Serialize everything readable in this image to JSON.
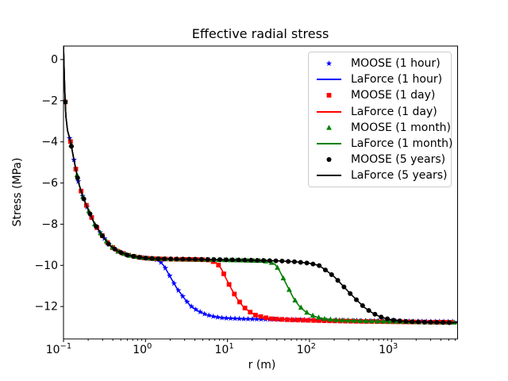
{
  "figure": {
    "title": "Effective radial stress",
    "xlabel": "r (m)",
    "ylabel": "Stress (MPa)",
    "background": "#ffffff"
  },
  "chart_data": {
    "type": "line",
    "title": "Effective radial stress",
    "xlabel": "r (m)",
    "ylabel": "Stress (MPa)",
    "x_scale": "log",
    "y_scale": "linear",
    "xlim": [
      0.1,
      6400
    ],
    "ylim": [
      -13.6,
      0.66
    ],
    "grid": false,
    "legend_position": "upper right",
    "x_ticks": [
      {
        "value": 0.1,
        "mantissa": "10",
        "exp": "−1"
      },
      {
        "value": 1,
        "mantissa": "10",
        "exp": "0"
      },
      {
        "value": 10,
        "mantissa": "10",
        "exp": "1"
      },
      {
        "value": 100,
        "mantissa": "10",
        "exp": "2"
      },
      {
        "value": 1000,
        "mantissa": "10",
        "exp": "3"
      }
    ],
    "y_ticks": [
      {
        "value": 0,
        "label": "0"
      },
      {
        "value": -2,
        "label": "−2"
      },
      {
        "value": -4,
        "label": "−4"
      },
      {
        "value": -6,
        "label": "−6"
      },
      {
        "value": -8,
        "label": "−8"
      },
      {
        "value": -10,
        "label": "−10"
      },
      {
        "value": -12,
        "label": "−12"
      }
    ],
    "common_profile": [
      [
        0.1,
        0.65
      ],
      [
        0.102,
        -0.6
      ],
      [
        0.104,
        -1.7
      ],
      [
        0.107,
        -2.77
      ],
      [
        0.112,
        -3.45
      ],
      [
        0.122,
        -4.0
      ],
      [
        0.136,
        -5.0
      ],
      [
        0.153,
        -6.0
      ],
      [
        0.17,
        -6.6
      ],
      [
        0.2,
        -7.3
      ],
      [
        0.24,
        -8.0
      ],
      [
        0.29,
        -8.5
      ],
      [
        0.36,
        -9.0
      ],
      [
        0.45,
        -9.3
      ],
      [
        0.6,
        -9.5
      ],
      [
        0.8,
        -9.6
      ],
      [
        1.0,
        -9.65
      ],
      [
        1.3,
        -9.68
      ]
    ],
    "curves": {
      "1 hour": [
        [
          1.5,
          -9.8
        ],
        [
          1.7,
          -10.05
        ],
        [
          2.0,
          -10.55
        ],
        [
          2.4,
          -11.1
        ],
        [
          2.9,
          -11.55
        ],
        [
          3.5,
          -11.95
        ],
        [
          4.3,
          -12.2
        ],
        [
          5.5,
          -12.4
        ],
        [
          7,
          -12.5
        ],
        [
          9,
          -12.56
        ],
        [
          15,
          -12.6
        ],
        [
          40,
          -12.63
        ],
        [
          100,
          -12.65
        ],
        [
          300,
          -12.68
        ],
        [
          1000,
          -12.71
        ],
        [
          3000,
          -12.73
        ],
        [
          6400,
          -12.74
        ]
      ],
      "1 day": [
        [
          2,
          -9.7
        ],
        [
          3,
          -9.71
        ],
        [
          4.5,
          -9.72
        ],
        [
          6,
          -9.74
        ],
        [
          7.5,
          -9.9
        ],
        [
          8.5,
          -10.2
        ],
        [
          9.5,
          -10.6
        ],
        [
          11,
          -11.1
        ],
        [
          13,
          -11.6
        ],
        [
          15.5,
          -12.0
        ],
        [
          18.5,
          -12.25
        ],
        [
          22,
          -12.42
        ],
        [
          27,
          -12.52
        ],
        [
          35,
          -12.6
        ],
        [
          60,
          -12.65
        ],
        [
          150,
          -12.69
        ],
        [
          400,
          -12.72
        ],
        [
          1000,
          -12.74
        ],
        [
          3000,
          -12.76
        ],
        [
          6400,
          -12.77
        ]
      ],
      "1 month": [
        [
          2,
          -9.7
        ],
        [
          4,
          -9.72
        ],
        [
          8,
          -9.74
        ],
        [
          15,
          -9.76
        ],
        [
          25,
          -9.78
        ],
        [
          32,
          -9.82
        ],
        [
          38,
          -9.95
        ],
        [
          43,
          -10.25
        ],
        [
          49,
          -10.7
        ],
        [
          56,
          -11.15
        ],
        [
          64,
          -11.6
        ],
        [
          74,
          -11.95
        ],
        [
          86,
          -12.2
        ],
        [
          100,
          -12.38
        ],
        [
          120,
          -12.5
        ],
        [
          150,
          -12.6
        ],
        [
          220,
          -12.66
        ],
        [
          400,
          -12.7
        ],
        [
          1000,
          -12.73
        ],
        [
          2500,
          -12.76
        ],
        [
          6400,
          -12.78
        ]
      ],
      "5 years": [
        [
          2,
          -9.69
        ],
        [
          5,
          -9.71
        ],
        [
          10,
          -9.73
        ],
        [
          20,
          -9.75
        ],
        [
          40,
          -9.78
        ],
        [
          70,
          -9.83
        ],
        [
          100,
          -9.9
        ],
        [
          130,
          -10.0
        ],
        [
          160,
          -10.25
        ],
        [
          200,
          -10.55
        ],
        [
          250,
          -10.95
        ],
        [
          310,
          -11.35
        ],
        [
          380,
          -11.7
        ],
        [
          470,
          -12.05
        ],
        [
          580,
          -12.3
        ],
        [
          700,
          -12.47
        ],
        [
          850,
          -12.58
        ],
        [
          1050,
          -12.66
        ],
        [
          1400,
          -12.72
        ],
        [
          2000,
          -12.75
        ],
        [
          3500,
          -12.77
        ],
        [
          6400,
          -12.79
        ]
      ]
    },
    "marker_rule": {
      "start": 0.105,
      "end": 6000
    },
    "series": [
      {
        "label": "MOOSE (1 hour)",
        "render": "markers",
        "marker": "star",
        "color": "#0000ff",
        "curve": "1 hour",
        "marker_ratio": 1.13
      },
      {
        "label": "LaForce (1 hour)",
        "render": "line",
        "marker": "",
        "color": "#0000ff",
        "curve": "1 hour"
      },
      {
        "label": "MOOSE (1 day)",
        "render": "markers",
        "marker": "square",
        "color": "#ff0000",
        "curve": "1 day",
        "marker_ratio": 1.16
      },
      {
        "label": "LaForce (1 day)",
        "render": "line",
        "marker": "",
        "color": "#ff0000",
        "curve": "1 day"
      },
      {
        "label": "MOOSE (1 month)",
        "render": "markers",
        "marker": "triangle",
        "color": "#008000",
        "curve": "1 month",
        "marker_ratio": 1.18
      },
      {
        "label": "LaForce (1 month)",
        "render": "line",
        "marker": "",
        "color": "#008000",
        "curve": "1 month"
      },
      {
        "label": "MOOSE (5 years)",
        "render": "markers",
        "marker": "circle",
        "color": "#000000",
        "curve": "5 years",
        "marker_ratio": 1.19
      },
      {
        "label": "LaForce (5 years)",
        "render": "line",
        "marker": "",
        "color": "#000000",
        "curve": "5 years"
      }
    ]
  }
}
